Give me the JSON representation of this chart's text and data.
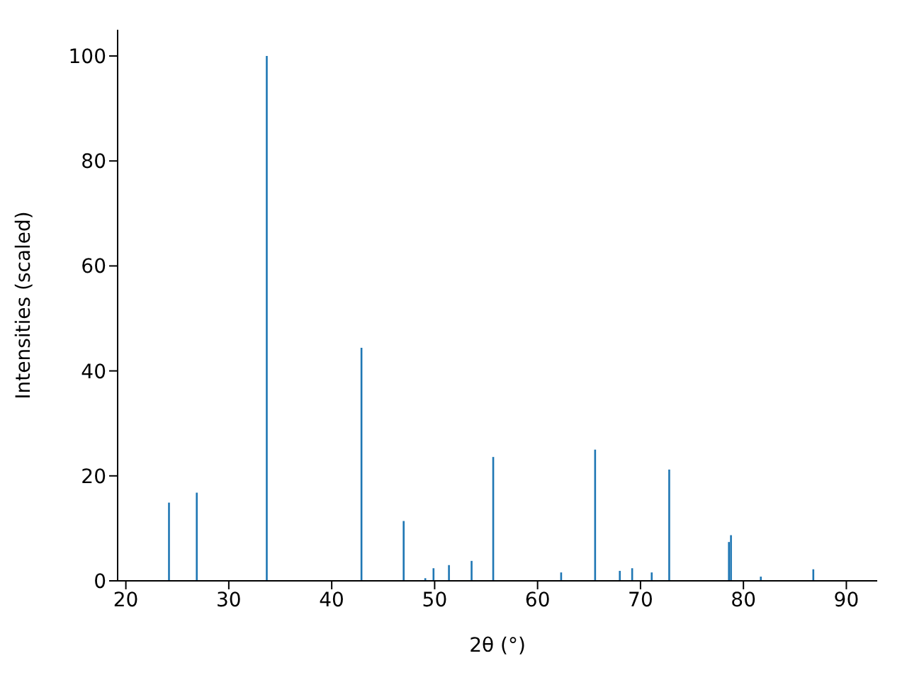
{
  "chart_data": {
    "type": "bar",
    "xlabel": "2θ (°)",
    "ylabel": "Intensities (scaled)",
    "color": "#1f77b4",
    "x": [
      24.2,
      26.9,
      33.7,
      42.9,
      47.0,
      49.1,
      49.9,
      51.4,
      53.6,
      55.7,
      62.3,
      65.6,
      68.0,
      69.2,
      71.1,
      72.8,
      78.6,
      78.8,
      81.7,
      86.8
    ],
    "values": [
      14.9,
      16.8,
      100,
      44.4,
      11.4,
      0.5,
      2.4,
      3.0,
      3.8,
      23.6,
      1.6,
      25,
      1.9,
      2.4,
      1.6,
      21.2,
      7.4,
      8.7,
      0.8,
      2.2
    ],
    "xlim": [
      19.2,
      93
    ],
    "xticks": [
      20,
      30,
      40,
      50,
      60,
      70,
      80,
      90
    ],
    "ylim": [
      0,
      105
    ],
    "yticks": [
      0,
      20,
      40,
      60,
      80,
      100
    ],
    "grid": false
  }
}
